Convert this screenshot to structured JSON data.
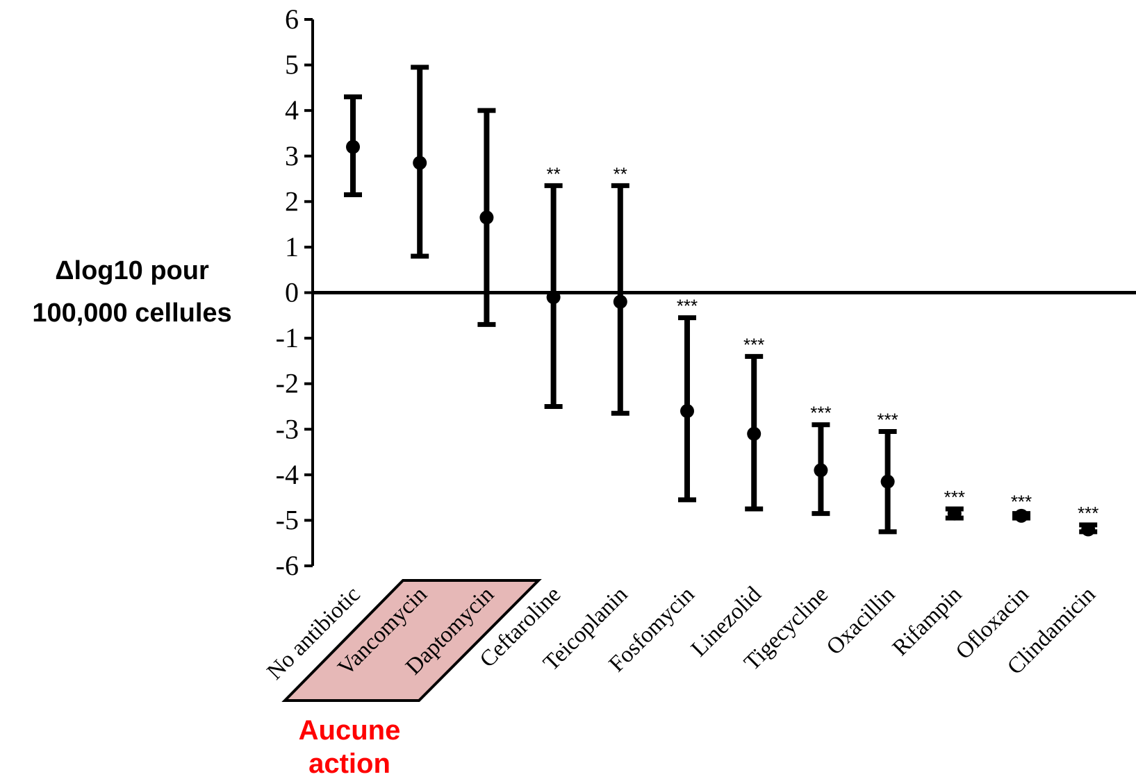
{
  "chart_data": {
    "type": "scatter",
    "title": "",
    "ylabel_lines": [
      "Δlog10 pour",
      "100,000 cellules"
    ],
    "ylim": [
      -6,
      6
    ],
    "yticks": [
      "6",
      "5",
      "4",
      "3",
      "2",
      "1",
      "0",
      "-1",
      "-2",
      "-3",
      "-4",
      "-5",
      "-6"
    ],
    "grid": false,
    "categories": [
      "No antibiotic",
      "Vancomycin",
      "Daptomycin",
      "Ceftaroline",
      "Teicoplanin",
      "Fosfomycin",
      "Linezolid",
      "Tigecycline",
      "Oxacillin",
      "Rifampin",
      "Ofloxacin",
      "Clindamicin"
    ],
    "values": [
      3.2,
      2.85,
      1.65,
      -0.1,
      -0.2,
      -2.6,
      -3.1,
      -3.9,
      -4.15,
      -4.85,
      -4.9,
      -5.2
    ],
    "error_upper": [
      4.3,
      4.95,
      4.0,
      2.35,
      2.35,
      -0.55,
      -1.4,
      -2.9,
      -3.05,
      -4.75,
      -4.85,
      -5.1
    ],
    "error_lower": [
      2.15,
      0.8,
      -0.7,
      -2.5,
      -2.65,
      -4.55,
      -4.75,
      -4.85,
      -5.25,
      -4.95,
      -4.95,
      -5.25
    ],
    "significance": [
      "",
      "",
      "",
      "**",
      "**",
      "***",
      "***",
      "***",
      "***",
      "***",
      "***",
      "***"
    ],
    "annotation": {
      "lines": [
        "Aucune",
        "action"
      ],
      "highlighted_categories": [
        "Vancomycin",
        "Daptomycin"
      ],
      "text_color": "#ff0000",
      "box_fill": "#e6b8b7",
      "box_stroke": "#000000"
    },
    "colors": {
      "series": "#000000"
    }
  }
}
